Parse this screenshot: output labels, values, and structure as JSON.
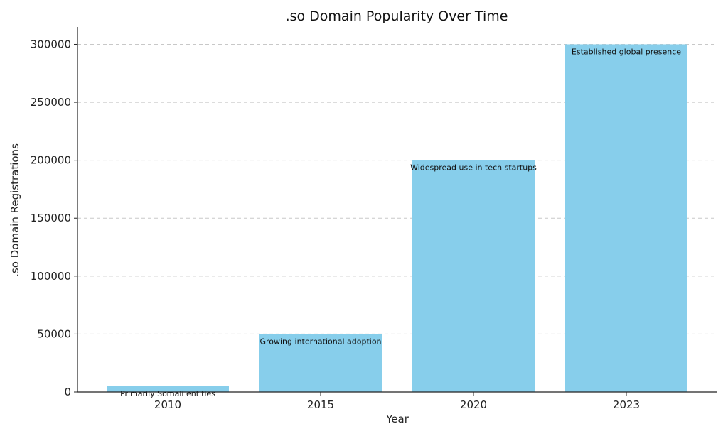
{
  "chart_data": {
    "type": "bar",
    "title": ".so Domain Popularity Over Time",
    "xlabel": "Year",
    "ylabel": ".so Domain Registrations",
    "categories": [
      "2010",
      "2015",
      "2020",
      "2023"
    ],
    "values": [
      5000,
      50000,
      200000,
      300000
    ],
    "annotations": [
      "Primarily Somali entities",
      "Growing international adoption",
      "Widespread use in tech startups",
      "Established global presence"
    ],
    "ylim": [
      0,
      315000
    ],
    "yticks": [
      0,
      50000,
      100000,
      150000,
      200000,
      250000,
      300000
    ],
    "grid": "y-dashed",
    "legend": "none",
    "bar_color": "#87CEEB"
  }
}
